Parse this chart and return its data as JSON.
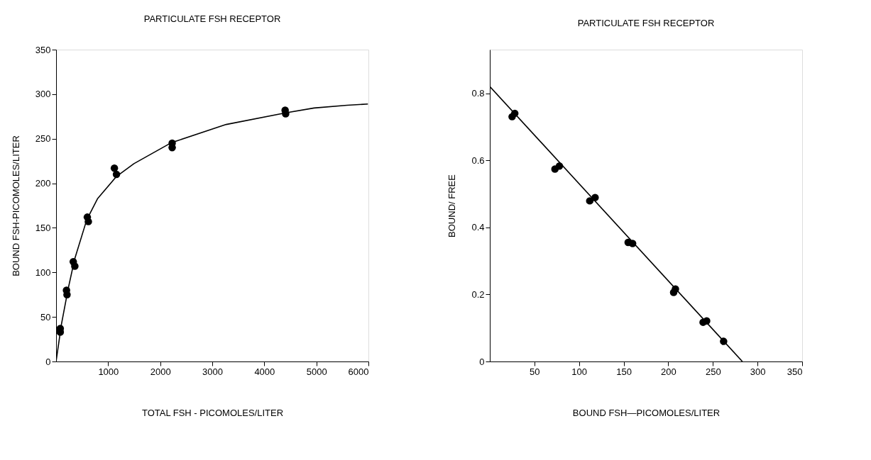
{
  "chart_data": [
    {
      "type": "scatter",
      "title": "PARTICULATE FSH RECEPTOR",
      "xlabel": "TOTAL FSH - PICOMOLES/LITER",
      "ylabel": "BOUND FSH-PICOMOLES/LITER",
      "xlim": [
        0,
        6000
      ],
      "xticks": [
        1000,
        2000,
        3000,
        4000,
        5000,
        6000
      ],
      "ylim": [
        0,
        350
      ],
      "yticks": [
        0,
        50,
        100,
        150,
        200,
        250,
        300,
        350
      ],
      "grid": false,
      "series": [
        {
          "marker": "circle",
          "color": "#000000",
          "x": [
            80,
            80,
            200,
            210,
            330,
            360,
            600,
            620,
            1120,
            1160,
            2230,
            2230,
            4400,
            4410
          ],
          "values": [
            37,
            33,
            80,
            75,
            112,
            107,
            162,
            157,
            217,
            210,
            245,
            240,
            282,
            278
          ]
        },
        {
          "type": "line",
          "color": "#000000",
          "line_style": "solid",
          "x": [
            0,
            104,
            230,
            357,
            589,
            800,
            1158,
            1496,
            2213,
            3268,
            4408,
            4956,
            5589,
            5990
          ],
          "values": [
            0,
            42,
            81,
            115,
            159,
            183,
            207.5,
            222,
            245.5,
            266,
            279,
            284.5,
            287.5,
            289
          ]
        }
      ]
    },
    {
      "type": "scatter",
      "title": "PARTICULATE FSH RECEPTOR",
      "xlabel": "BOUND FSH—PICOMOLES/LITER",
      "ylabel": "BOUND/ FREE",
      "xlim": [
        0,
        350
      ],
      "xticks": [
        50,
        100,
        150,
        200,
        250,
        300,
        350
      ],
      "ylim": [
        0,
        0.93
      ],
      "yticks": [
        0,
        0.2,
        0.4,
        0.6,
        0.8
      ],
      "grid": false,
      "series": [
        {
          "marker": "circle",
          "color": "#000000",
          "x": [
            25,
            28,
            73,
            78,
            112,
            118,
            155,
            160,
            206,
            208,
            239,
            243,
            262
          ],
          "values": [
            0.73,
            0.74,
            0.574,
            0.583,
            0.479,
            0.489,
            0.355,
            0.352,
            0.206,
            0.216,
            0.117,
            0.121,
            0.06
          ]
        },
        {
          "type": "line",
          "color": "#000000",
          "line_style": "solid",
          "x": [
            0,
            283
          ],
          "values": [
            0.82,
            0
          ]
        }
      ]
    }
  ]
}
